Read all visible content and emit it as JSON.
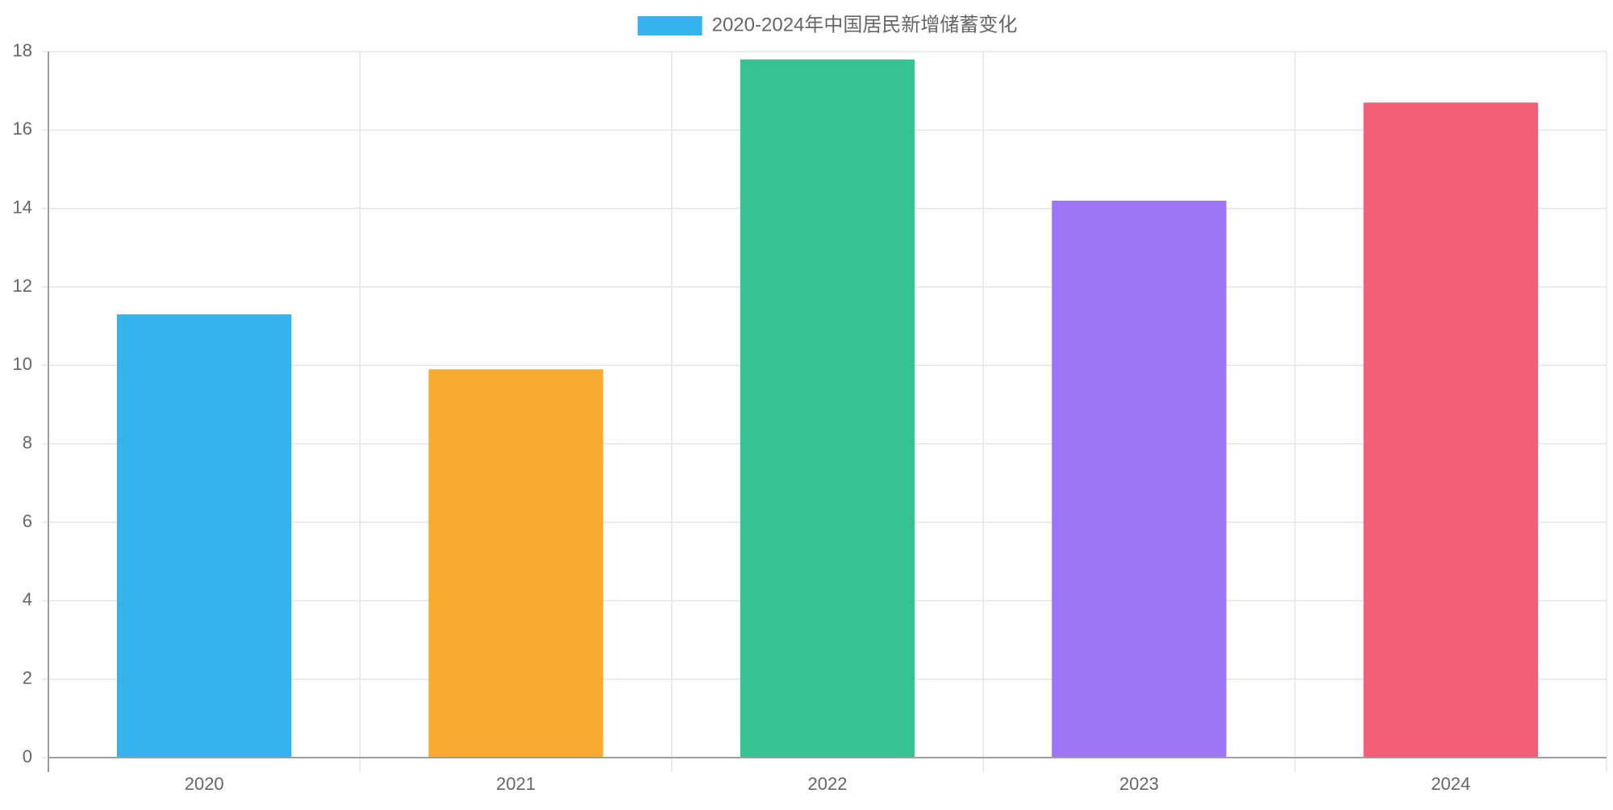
{
  "colors": {
    "grid": "#e5e5e5",
    "axis": "#9e9e9e",
    "text": "#666666"
  },
  "chart_data": {
    "type": "bar",
    "legend": {
      "label": "2020-2024年中国居民新增储蓄变化",
      "swatch_color": "#36b2ec",
      "position": "top-center"
    },
    "categories": [
      "2020",
      "2021",
      "2022",
      "2023",
      "2024"
    ],
    "series": [
      {
        "name": "2020-2024年中国居民新增储蓄变化",
        "values": [
          11.3,
          9.9,
          17.8,
          14.2,
          16.7
        ],
        "colors": [
          "#36b2ec",
          "#f7ac30",
          "#36c391",
          "#9d75f7",
          "#f55e77"
        ]
      }
    ],
    "y_ticks": [
      0,
      2,
      4,
      6,
      8,
      10,
      12,
      14,
      16,
      18
    ],
    "ylim": [
      0,
      18
    ],
    "grid": true,
    "title": "",
    "xlabel": "",
    "ylabel": ""
  }
}
